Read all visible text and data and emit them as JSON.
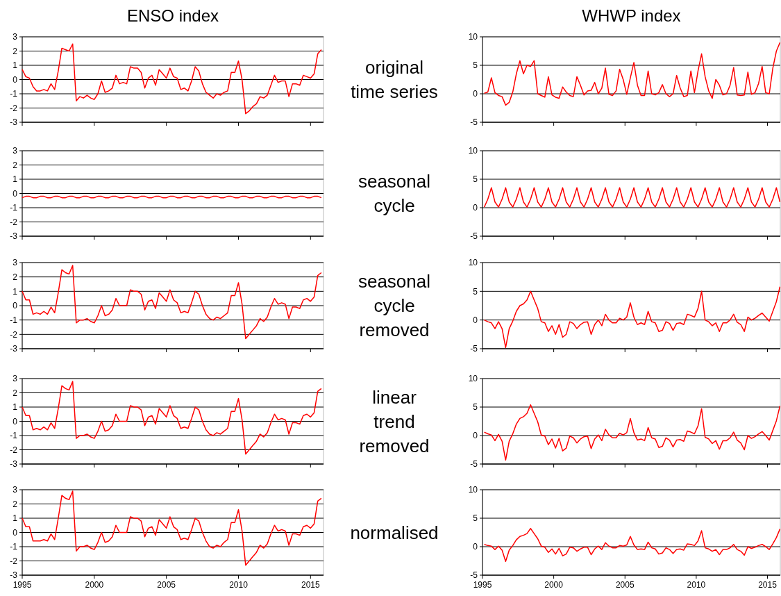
{
  "chart_data": [
    {
      "type": "line",
      "title": "ENSO index",
      "annotations": [
        "original time series"
      ],
      "color": "#ff0000",
      "xlim": [
        1995,
        2015.9
      ],
      "ylim": [
        -3,
        3
      ],
      "xticks": [
        1995,
        2000,
        2005,
        2010,
        2015
      ],
      "yticks": [
        -3,
        -2,
        -1,
        0,
        1,
        2,
        3
      ],
      "grid": "y",
      "tick_labels": "y",
      "x": [
        1995,
        1995.25,
        1995.5,
        1995.75,
        1996,
        1996.25,
        1996.5,
        1996.75,
        1997,
        1997.25,
        1997.5,
        1997.75,
        1998,
        1998.25,
        1998.5,
        1998.75,
        1999,
        1999.25,
        1999.5,
        1999.75,
        2000,
        2000.25,
        2000.5,
        2000.75,
        2001,
        2001.25,
        2001.5,
        2001.75,
        2002,
        2002.25,
        2002.5,
        2002.75,
        2003,
        2003.25,
        2003.5,
        2003.75,
        2004,
        2004.25,
        2004.5,
        2004.75,
        2005,
        2005.25,
        2005.5,
        2005.75,
        2006,
        2006.25,
        2006.5,
        2006.75,
        2007,
        2007.25,
        2007.5,
        2007.75,
        2008,
        2008.25,
        2008.5,
        2008.75,
        2009,
        2009.25,
        2009.5,
        2009.75,
        2010,
        2010.25,
        2010.5,
        2010.75,
        2011,
        2011.25,
        2011.5,
        2011.75,
        2012,
        2012.25,
        2012.5,
        2012.75,
        2013,
        2013.25,
        2013.5,
        2013.75,
        2014,
        2014.25,
        2014.5,
        2014.75,
        2015,
        2015.25,
        2015.5,
        2015.75
      ],
      "values": [
        0.7,
        0.2,
        0.1,
        -0.5,
        -0.8,
        -0.8,
        -0.7,
        -0.8,
        -0.3,
        -0.7,
        0.6,
        2.2,
        2.1,
        2.0,
        2.5,
        -1.5,
        -1.2,
        -1.3,
        -1.1,
        -1.3,
        -1.4,
        -1.0,
        -0.1,
        -0.9,
        -0.8,
        -0.6,
        0.3,
        -0.3,
        -0.2,
        -0.3,
        0.9,
        0.8,
        0.8,
        0.5,
        -0.6,
        0.1,
        0.3,
        -0.4,
        0.7,
        0.4,
        0.1,
        0.8,
        0.2,
        0.1,
        -0.7,
        -0.6,
        -0.8,
        -0.1,
        0.9,
        0.6,
        -0.3,
        -0.9,
        -1.1,
        -1.3,
        -1.0,
        -1.1,
        -0.9,
        -0.8,
        0.5,
        0.5,
        1.3,
        0.0,
        -2.4,
        -2.2,
        -1.9,
        -1.7,
        -1.2,
        -1.3,
        -1.1,
        -0.4,
        0.3,
        -0.2,
        -0.1,
        -0.1,
        -1.2,
        -0.3,
        -0.3,
        -0.4,
        0.3,
        0.2,
        0.1,
        0.4,
        1.8,
        2.1
      ]
    },
    {
      "type": "line",
      "title": "WHWP index",
      "color": "#ff0000",
      "xlim": [
        1995,
        2015.9
      ],
      "ylim": [
        -5,
        10
      ],
      "xticks": [
        1995,
        2000,
        2005,
        2010,
        2015
      ],
      "yticks": [
        -5,
        0,
        5,
        10
      ],
      "grid": "y",
      "tick_labels": "y",
      "x": [
        1995.125,
        1995.375,
        1995.625,
        1995.875,
        1996.125,
        1996.375,
        1996.625,
        1996.875,
        1997.125,
        1997.375,
        1997.625,
        1997.875,
        1998.125,
        1998.375,
        1998.625,
        1998.875,
        1999.125,
        1999.375,
        1999.625,
        1999.875,
        2000.125,
        2000.375,
        2000.625,
        2000.875,
        2001.125,
        2001.375,
        2001.625,
        2001.875,
        2002.125,
        2002.375,
        2002.625,
        2002.875,
        2003.125,
        2003.375,
        2003.625,
        2003.875,
        2004.125,
        2004.375,
        2004.625,
        2004.875,
        2005.125,
        2005.375,
        2005.625,
        2005.875,
        2006.125,
        2006.375,
        2006.625,
        2006.875,
        2007.125,
        2007.375,
        2007.625,
        2007.875,
        2008.125,
        2008.375,
        2008.625,
        2008.875,
        2009.125,
        2009.375,
        2009.625,
        2009.875,
        2010.125,
        2010.375,
        2010.625,
        2010.875,
        2011.125,
        2011.375,
        2011.625,
        2011.875,
        2012.125,
        2012.375,
        2012.625,
        2012.875,
        2013.125,
        2013.375,
        2013.625,
        2013.875,
        2014.125,
        2014.375,
        2014.625,
        2014.875,
        2015.125,
        2015.375,
        2015.625,
        2015.875
      ],
      "values": [
        0.1,
        0.3,
        2.8,
        0.2,
        -0.3,
        -0.5,
        -2.0,
        -1.5,
        0.3,
        3.5,
        5.8,
        3.5,
        5.0,
        4.8,
        5.8,
        0.0,
        -0.3,
        -0.6,
        3.0,
        -0.2,
        -0.6,
        -0.8,
        1.2,
        0.3,
        -0.3,
        -0.5,
        3.0,
        1.5,
        -0.2,
        0.5,
        0.6,
        2.0,
        0.0,
        1.0,
        4.5,
        -0.1,
        -0.3,
        0.5,
        4.3,
        2.5,
        -0.1,
        2.8,
        5.5,
        1.5,
        -0.3,
        -0.3,
        4.0,
        0.0,
        -0.2,
        0.2,
        1.6,
        0.0,
        -0.5,
        0.0,
        3.2,
        1.0,
        -0.5,
        -0.3,
        4.0,
        0.2,
        4.0,
        7.0,
        3.0,
        0.5,
        -0.8,
        2.5,
        1.5,
        -0.2,
        0.0,
        1.5,
        4.6,
        -0.2,
        -0.3,
        -0.2,
        3.8,
        -0.1,
        0.2,
        1.8,
        4.8,
        0.2,
        0.0,
        4.5,
        7.5,
        9.0
      ]
    },
    {
      "type": "line",
      "annotations": [
        "seasonal cycle"
      ],
      "color": "#ff0000",
      "xlim": [
        1995,
        2015.9
      ],
      "ylim": [
        -3,
        3
      ],
      "xticks": [
        1995,
        2000,
        2005,
        2010,
        2015
      ],
      "yticks": [
        -3,
        -2,
        -1,
        0,
        1,
        2,
        3
      ],
      "grid": "y",
      "tick_labels": "y",
      "x": [
        1995,
        1995.25,
        1995.5,
        1995.75,
        1996,
        1996.25,
        1996.5,
        1996.75,
        1997,
        1997.25,
        1997.5,
        1997.75,
        1998,
        1998.25,
        1998.5,
        1998.75,
        1999,
        1999.25,
        1999.5,
        1999.75,
        2000,
        2000.25,
        2000.5,
        2000.75,
        2001,
        2001.25,
        2001.5,
        2001.75,
        2002,
        2002.25,
        2002.5,
        2002.75,
        2003,
        2003.25,
        2003.5,
        2003.75,
        2004,
        2004.25,
        2004.5,
        2004.75,
        2005,
        2005.25,
        2005.5,
        2005.75,
        2006,
        2006.25,
        2006.5,
        2006.75,
        2007,
        2007.25,
        2007.5,
        2007.75,
        2008,
        2008.25,
        2008.5,
        2008.75,
        2009,
        2009.25,
        2009.5,
        2009.75,
        2010,
        2010.25,
        2010.5,
        2010.75,
        2011,
        2011.25,
        2011.5,
        2011.75,
        2012,
        2012.25,
        2012.5,
        2012.75,
        2013,
        2013.25,
        2013.5,
        2013.75,
        2014,
        2014.25,
        2014.5,
        2014.75,
        2015,
        2015.25,
        2015.5,
        2015.75
      ],
      "values": [
        -0.3,
        -0.2,
        -0.2,
        -0.3,
        -0.3,
        -0.2,
        -0.2,
        -0.3,
        -0.3,
        -0.2,
        -0.2,
        -0.3,
        -0.3,
        -0.2,
        -0.2,
        -0.3,
        -0.3,
        -0.2,
        -0.2,
        -0.3,
        -0.3,
        -0.2,
        -0.2,
        -0.3,
        -0.3,
        -0.2,
        -0.2,
        -0.3,
        -0.3,
        -0.2,
        -0.2,
        -0.3,
        -0.3,
        -0.2,
        -0.2,
        -0.3,
        -0.3,
        -0.2,
        -0.2,
        -0.3,
        -0.3,
        -0.2,
        -0.2,
        -0.3,
        -0.3,
        -0.2,
        -0.2,
        -0.3,
        -0.3,
        -0.2,
        -0.2,
        -0.3,
        -0.3,
        -0.2,
        -0.2,
        -0.3,
        -0.3,
        -0.2,
        -0.2,
        -0.3,
        -0.3,
        -0.2,
        -0.2,
        -0.3,
        -0.3,
        -0.2,
        -0.2,
        -0.3,
        -0.3,
        -0.2,
        -0.2,
        -0.3,
        -0.3,
        -0.2,
        -0.2,
        -0.3,
        -0.3,
        -0.2,
        -0.2,
        -0.3,
        -0.3,
        -0.2,
        -0.2,
        -0.3
      ]
    },
    {
      "type": "line",
      "color": "#ff0000",
      "xlim": [
        1995,
        2015.9
      ],
      "ylim": [
        -5,
        10
      ],
      "xticks": [
        1995,
        2000,
        2005,
        2010,
        2015
      ],
      "yticks": [
        -5,
        0,
        5,
        10
      ],
      "grid": "y",
      "tick_labels": "y",
      "x": [
        1995.125,
        1995.375,
        1995.625,
        1995.875,
        1996.125,
        1996.375,
        1996.625,
        1996.875,
        1997.125,
        1997.375,
        1997.625,
        1997.875,
        1998.125,
        1998.375,
        1998.625,
        1998.875,
        1999.125,
        1999.375,
        1999.625,
        1999.875,
        2000.125,
        2000.375,
        2000.625,
        2000.875,
        2001.125,
        2001.375,
        2001.625,
        2001.875,
        2002.125,
        2002.375,
        2002.625,
        2002.875,
        2003.125,
        2003.375,
        2003.625,
        2003.875,
        2004.125,
        2004.375,
        2004.625,
        2004.875,
        2005.125,
        2005.375,
        2005.625,
        2005.875,
        2006.125,
        2006.375,
        2006.625,
        2006.875,
        2007.125,
        2007.375,
        2007.625,
        2007.875,
        2008.125,
        2008.375,
        2008.625,
        2008.875,
        2009.125,
        2009.375,
        2009.625,
        2009.875,
        2010.125,
        2010.375,
        2010.625,
        2010.875,
        2011.125,
        2011.375,
        2011.625,
        2011.875,
        2012.125,
        2012.375,
        2012.625,
        2012.875,
        2013.125,
        2013.375,
        2013.625,
        2013.875,
        2014.125,
        2014.375,
        2014.625,
        2014.875,
        2015.125,
        2015.375,
        2015.625,
        2015.875
      ],
      "values": [
        0.1,
        1.5,
        3.5,
        1.0,
        0.1,
        1.5,
        3.5,
        1.0,
        0.1,
        1.5,
        3.5,
        1.0,
        0.1,
        1.5,
        3.5,
        1.0,
        0.1,
        1.5,
        3.5,
        1.0,
        0.1,
        1.5,
        3.5,
        1.0,
        0.1,
        1.5,
        3.5,
        1.0,
        0.1,
        1.5,
        3.5,
        1.0,
        0.1,
        1.5,
        3.5,
        1.0,
        0.1,
        1.5,
        3.5,
        1.0,
        0.1,
        1.5,
        3.5,
        1.0,
        0.1,
        1.5,
        3.5,
        1.0,
        0.1,
        1.5,
        3.5,
        1.0,
        0.1,
        1.5,
        3.5,
        1.0,
        0.1,
        1.5,
        3.5,
        1.0,
        0.1,
        1.5,
        3.5,
        1.0,
        0.1,
        1.5,
        3.5,
        1.0,
        0.1,
        1.5,
        3.5,
        1.0,
        0.1,
        1.5,
        3.5,
        1.0,
        0.1,
        1.5,
        3.5,
        1.0,
        0.1,
        1.5,
        3.5,
        1.0
      ]
    },
    {
      "type": "line",
      "annotations": [
        "seasonal cycle removed"
      ],
      "color": "#ff0000",
      "xlim": [
        1995,
        2015.9
      ],
      "ylim": [
        -3,
        3
      ],
      "xticks": [
        1995,
        2000,
        2005,
        2010,
        2015
      ],
      "yticks": [
        -3,
        -2,
        -1,
        0,
        1,
        2,
        3
      ],
      "grid": "y",
      "tick_labels": "y",
      "x": [
        1995,
        1995.25,
        1995.5,
        1995.75,
        1996,
        1996.25,
        1996.5,
        1996.75,
        1997,
        1997.25,
        1997.5,
        1997.75,
        1998,
        1998.25,
        1998.5,
        1998.75,
        1999,
        1999.25,
        1999.5,
        1999.75,
        2000,
        2000.25,
        2000.5,
        2000.75,
        2001,
        2001.25,
        2001.5,
        2001.75,
        2002,
        2002.25,
        2002.5,
        2002.75,
        2003,
        2003.25,
        2003.5,
        2003.75,
        2004,
        2004.25,
        2004.5,
        2004.75,
        2005,
        2005.25,
        2005.5,
        2005.75,
        2006,
        2006.25,
        2006.5,
        2006.75,
        2007,
        2007.25,
        2007.5,
        2007.75,
        2008,
        2008.25,
        2008.5,
        2008.75,
        2009,
        2009.25,
        2009.5,
        2009.75,
        2010,
        2010.25,
        2010.5,
        2010.75,
        2011,
        2011.25,
        2011.5,
        2011.75,
        2012,
        2012.25,
        2012.5,
        2012.75,
        2013,
        2013.25,
        2013.5,
        2013.75,
        2014,
        2014.25,
        2014.5,
        2014.75,
        2015,
        2015.25,
        2015.5,
        2015.75
      ],
      "values": [
        1.0,
        0.4,
        0.4,
        -0.6,
        -0.5,
        -0.6,
        -0.4,
        -0.6,
        -0.1,
        -0.5,
        0.9,
        2.5,
        2.3,
        2.2,
        2.8,
        -1.2,
        -1.0,
        -1.0,
        -0.9,
        -1.1,
        -1.2,
        -0.7,
        0.0,
        -0.7,
        -0.6,
        -0.3,
        0.5,
        0.0,
        0.0,
        0.0,
        1.1,
        1.0,
        1.0,
        0.8,
        -0.3,
        0.3,
        0.4,
        -0.2,
        0.9,
        0.6,
        0.3,
        1.1,
        0.4,
        0.2,
        -0.5,
        -0.4,
        -0.5,
        0.2,
        1.0,
        0.8,
        0.0,
        -0.6,
        -0.9,
        -1.0,
        -0.8,
        -0.9,
        -0.7,
        -0.5,
        0.7,
        0.7,
        1.6,
        0.1,
        -2.3,
        -2.0,
        -1.7,
        -1.4,
        -0.9,
        -1.1,
        -0.8,
        -0.1,
        0.5,
        0.1,
        0.2,
        0.1,
        -0.9,
        -0.1,
        -0.1,
        -0.2,
        0.4,
        0.5,
        0.3,
        0.6,
        2.1,
        2.3
      ]
    },
    {
      "type": "line",
      "color": "#ff0000",
      "xlim": [
        1995,
        2015.9
      ],
      "ylim": [
        -5,
        10
      ],
      "xticks": [
        1995,
        2000,
        2005,
        2010,
        2015
      ],
      "yticks": [
        -5,
        0,
        5,
        10
      ],
      "grid": "y",
      "tick_labels": "y",
      "x": [
        1995.125,
        1995.375,
        1995.625,
        1995.875,
        1996.125,
        1996.375,
        1996.625,
        1996.875,
        1997.125,
        1997.375,
        1997.625,
        1997.875,
        1998.125,
        1998.375,
        1998.625,
        1998.875,
        1999.125,
        1999.375,
        1999.625,
        1999.875,
        2000.125,
        2000.375,
        2000.625,
        2000.875,
        2001.125,
        2001.375,
        2001.625,
        2001.875,
        2002.125,
        2002.375,
        2002.625,
        2002.875,
        2003.125,
        2003.375,
        2003.625,
        2003.875,
        2004.125,
        2004.375,
        2004.625,
        2004.875,
        2005.125,
        2005.375,
        2005.625,
        2005.875,
        2006.125,
        2006.375,
        2006.625,
        2006.875,
        2007.125,
        2007.375,
        2007.625,
        2007.875,
        2008.125,
        2008.375,
        2008.625,
        2008.875,
        2009.125,
        2009.375,
        2009.625,
        2009.875,
        2010.125,
        2010.375,
        2010.625,
        2010.875,
        2011.125,
        2011.375,
        2011.625,
        2011.875,
        2012.125,
        2012.375,
        2012.625,
        2012.875,
        2013.125,
        2013.375,
        2013.625,
        2013.875,
        2014.125,
        2014.375,
        2014.625,
        2014.875,
        2015.125,
        2015.375,
        2015.625,
        2015.875
      ],
      "values": [
        0.0,
        -0.3,
        -0.5,
        -1.5,
        -0.3,
        -1.5,
        -4.8,
        -1.5,
        -0.2,
        1.5,
        2.5,
        2.8,
        3.5,
        5.0,
        3.5,
        2.0,
        -0.3,
        -0.5,
        -2.0,
        -1.0,
        -2.5,
        -0.8,
        -3.0,
        -2.5,
        -0.3,
        -0.6,
        -1.5,
        -0.8,
        -0.4,
        -0.3,
        -2.5,
        -0.8,
        0.0,
        -1.0,
        1.0,
        0.0,
        -0.5,
        -0.5,
        0.3,
        0.0,
        0.5,
        3.0,
        0.5,
        -0.8,
        -0.5,
        -0.8,
        1.5,
        -0.3,
        -0.5,
        -2.0,
        -1.8,
        -0.3,
        -0.6,
        -1.8,
        -0.6,
        -0.5,
        -0.8,
        1.0,
        0.8,
        0.5,
        2.0,
        5.0,
        0.0,
        -0.3,
        -1.0,
        -0.5,
        -2.0,
        -0.5,
        -0.5,
        0.0,
        1.0,
        -0.4,
        -0.8,
        -2.0,
        0.5,
        0.0,
        0.3,
        0.8,
        1.2,
        0.5,
        -0.2,
        1.5,
        3.2,
        5.8
      ]
    },
    {
      "type": "line",
      "annotations": [
        "linear trend removed"
      ],
      "color": "#ff0000",
      "xlim": [
        1995,
        2015.9
      ],
      "ylim": [
        -3,
        3
      ],
      "xticks": [
        1995,
        2000,
        2005,
        2010,
        2015
      ],
      "yticks": [
        -3,
        -2,
        -1,
        0,
        1,
        2,
        3
      ],
      "grid": "y",
      "tick_labels": "y",
      "x": [
        1995,
        1995.25,
        1995.5,
        1995.75,
        1996,
        1996.25,
        1996.5,
        1996.75,
        1997,
        1997.25,
        1997.5,
        1997.75,
        1998,
        1998.25,
        1998.5,
        1998.75,
        1999,
        1999.25,
        1999.5,
        1999.75,
        2000,
        2000.25,
        2000.5,
        2000.75,
        2001,
        2001.25,
        2001.5,
        2001.75,
        2002,
        2002.25,
        2002.5,
        2002.75,
        2003,
        2003.25,
        2003.5,
        2003.75,
        2004,
        2004.25,
        2004.5,
        2004.75,
        2005,
        2005.25,
        2005.5,
        2005.75,
        2006,
        2006.25,
        2006.5,
        2006.75,
        2007,
        2007.25,
        2007.5,
        2007.75,
        2008,
        2008.25,
        2008.5,
        2008.75,
        2009,
        2009.25,
        2009.5,
        2009.75,
        2010,
        2010.25,
        2010.5,
        2010.75,
        2011,
        2011.25,
        2011.5,
        2011.75,
        2012,
        2012.25,
        2012.5,
        2012.75,
        2013,
        2013.25,
        2013.5,
        2013.75,
        2014,
        2014.25,
        2014.5,
        2014.75,
        2015,
        2015.25,
        2015.5,
        2015.75
      ],
      "values": [
        1.0,
        0.4,
        0.4,
        -0.6,
        -0.5,
        -0.6,
        -0.4,
        -0.6,
        -0.1,
        -0.5,
        0.9,
        2.5,
        2.3,
        2.2,
        2.8,
        -1.2,
        -1.0,
        -1.0,
        -0.9,
        -1.1,
        -1.2,
        -0.7,
        0.0,
        -0.7,
        -0.6,
        -0.3,
        0.5,
        0.0,
        0.0,
        0.0,
        1.1,
        1.0,
        1.0,
        0.8,
        -0.3,
        0.3,
        0.4,
        -0.2,
        0.9,
        0.6,
        0.3,
        1.1,
        0.4,
        0.2,
        -0.5,
        -0.4,
        -0.5,
        0.2,
        1.0,
        0.8,
        0.0,
        -0.6,
        -0.9,
        -1.0,
        -0.8,
        -0.9,
        -0.7,
        -0.5,
        0.7,
        0.7,
        1.6,
        0.1,
        -2.3,
        -2.0,
        -1.7,
        -1.4,
        -0.9,
        -1.1,
        -0.8,
        -0.1,
        0.5,
        0.1,
        0.2,
        0.1,
        -0.9,
        -0.1,
        -0.1,
        -0.2,
        0.4,
        0.5,
        0.3,
        0.6,
        2.1,
        2.3
      ]
    },
    {
      "type": "line",
      "color": "#ff0000",
      "xlim": [
        1995,
        2015.9
      ],
      "ylim": [
        -5,
        10
      ],
      "xticks": [
        1995,
        2000,
        2005,
        2010,
        2015
      ],
      "yticks": [
        -5,
        0,
        5,
        10
      ],
      "grid": "y",
      "tick_labels": "y",
      "x": [
        1995.125,
        1995.375,
        1995.625,
        1995.875,
        1996.125,
        1996.375,
        1996.625,
        1996.875,
        1997.125,
        1997.375,
        1997.625,
        1997.875,
        1998.125,
        1998.375,
        1998.625,
        1998.875,
        1999.125,
        1999.375,
        1999.625,
        1999.875,
        2000.125,
        2000.375,
        2000.625,
        2000.875,
        2001.125,
        2001.375,
        2001.625,
        2001.875,
        2002.125,
        2002.375,
        2002.625,
        2002.875,
        2003.125,
        2003.375,
        2003.625,
        2003.875,
        2004.125,
        2004.375,
        2004.625,
        2004.875,
        2005.125,
        2005.375,
        2005.625,
        2005.875,
        2006.125,
        2006.375,
        2006.625,
        2006.875,
        2007.125,
        2007.375,
        2007.625,
        2007.875,
        2008.125,
        2008.375,
        2008.625,
        2008.875,
        2009.125,
        2009.375,
        2009.625,
        2009.875,
        2010.125,
        2010.375,
        2010.625,
        2010.875,
        2011.125,
        2011.375,
        2011.625,
        2011.875,
        2012.125,
        2012.375,
        2012.625,
        2012.875,
        2013.125,
        2013.375,
        2013.625,
        2013.875,
        2014.125,
        2014.375,
        2014.625,
        2014.875,
        2015.125,
        2015.375,
        2015.625,
        2015.875
      ],
      "values": [
        0.6,
        0.3,
        0.1,
        -0.9,
        0.2,
        -1.0,
        -4.3,
        -1.0,
        0.3,
        2.0,
        3.0,
        3.3,
        3.9,
        5.4,
        3.9,
        2.4,
        0.1,
        -0.1,
        -1.6,
        -0.6,
        -2.2,
        -0.5,
        -2.7,
        -2.2,
        -0.1,
        -0.4,
        -1.3,
        -0.6,
        -0.2,
        -0.1,
        -2.3,
        -0.6,
        0.1,
        -0.9,
        1.1,
        0.1,
        -0.4,
        -0.4,
        0.4,
        0.1,
        0.5,
        3.0,
        0.5,
        -0.8,
        -0.6,
        -0.9,
        1.4,
        -0.4,
        -0.6,
        -2.1,
        -1.9,
        -0.4,
        -0.8,
        -2.0,
        -0.8,
        -0.7,
        -1.0,
        0.8,
        0.6,
        0.3,
        1.7,
        4.7,
        -0.3,
        -0.6,
        -1.4,
        -0.9,
        -2.4,
        -0.9,
        -0.9,
        -0.4,
        0.6,
        -0.8,
        -1.3,
        -2.5,
        0.0,
        -0.5,
        -0.2,
        0.3,
        0.7,
        0.0,
        -0.8,
        0.9,
        2.6,
        5.2
      ]
    },
    {
      "type": "line",
      "annotations": [
        "normalised"
      ],
      "color": "#ff0000",
      "xlim": [
        1995,
        2015.9
      ],
      "ylim": [
        -3,
        3
      ],
      "xticks": [
        1995,
        2000,
        2005,
        2010,
        2015
      ],
      "yticks": [
        -3,
        -2,
        -1,
        0,
        1,
        2,
        3
      ],
      "grid": "y",
      "x": [
        1995,
        1995.25,
        1995.5,
        1995.75,
        1996,
        1996.25,
        1996.5,
        1996.75,
        1997,
        1997.25,
        1997.5,
        1997.75,
        1998,
        1998.25,
        1998.5,
        1998.75,
        1999,
        1999.25,
        1999.5,
        1999.75,
        2000,
        2000.25,
        2000.5,
        2000.75,
        2001,
        2001.25,
        2001.5,
        2001.75,
        2002,
        2002.25,
        2002.5,
        2002.75,
        2003,
        2003.25,
        2003.5,
        2003.75,
        2004,
        2004.25,
        2004.5,
        2004.75,
        2005,
        2005.25,
        2005.5,
        2005.75,
        2006,
        2006.25,
        2006.5,
        2006.75,
        2007,
        2007.25,
        2007.5,
        2007.75,
        2008,
        2008.25,
        2008.5,
        2008.75,
        2009,
        2009.25,
        2009.5,
        2009.75,
        2010,
        2010.25,
        2010.5,
        2010.75,
        2011,
        2011.25,
        2011.5,
        2011.75,
        2012,
        2012.25,
        2012.5,
        2012.75,
        2013,
        2013.25,
        2013.5,
        2013.75,
        2014,
        2014.25,
        2014.5,
        2014.75,
        2015,
        2015.25,
        2015.5,
        2015.75
      ],
      "values": [
        1.0,
        0.4,
        0.4,
        -0.6,
        -0.6,
        -0.6,
        -0.5,
        -0.6,
        -0.1,
        -0.5,
        1.0,
        2.6,
        2.4,
        2.3,
        2.9,
        -1.3,
        -1.0,
        -1.0,
        -0.9,
        -1.1,
        -1.2,
        -0.7,
        0.0,
        -0.7,
        -0.6,
        -0.3,
        0.5,
        0.0,
        0.0,
        0.0,
        1.1,
        1.0,
        1.0,
        0.8,
        -0.3,
        0.3,
        0.4,
        -0.2,
        0.9,
        0.6,
        0.3,
        1.1,
        0.4,
        0.2,
        -0.5,
        -0.4,
        -0.5,
        0.2,
        1.0,
        0.8,
        0.0,
        -0.6,
        -1.0,
        -1.1,
        -0.9,
        -1.0,
        -0.7,
        -0.5,
        0.7,
        0.7,
        1.6,
        0.1,
        -2.3,
        -2.0,
        -1.7,
        -1.4,
        -0.9,
        -1.1,
        -0.8,
        -0.1,
        0.5,
        0.1,
        0.2,
        0.1,
        -0.9,
        -0.1,
        -0.1,
        -0.2,
        0.4,
        0.5,
        0.3,
        0.6,
        2.2,
        2.4
      ]
    },
    {
      "type": "line",
      "color": "#ff0000",
      "xlim": [
        1995,
        2015.9
      ],
      "ylim": [
        -5,
        10
      ],
      "xticks": [
        1995,
        2000,
        2005,
        2010,
        2015
      ],
      "yticks": [
        -5,
        0,
        5,
        10
      ],
      "grid": "y",
      "x": [
        1995.125,
        1995.375,
        1995.625,
        1995.875,
        1996.125,
        1996.375,
        1996.625,
        1996.875,
        1997.125,
        1997.375,
        1997.625,
        1997.875,
        1998.125,
        1998.375,
        1998.625,
        1998.875,
        1999.125,
        1999.375,
        1999.625,
        1999.875,
        2000.125,
        2000.375,
        2000.625,
        2000.875,
        2001.125,
        2001.375,
        2001.625,
        2001.875,
        2002.125,
        2002.375,
        2002.625,
        2002.875,
        2003.125,
        2003.375,
        2003.625,
        2003.875,
        2004.125,
        2004.375,
        2004.625,
        2004.875,
        2005.125,
        2005.375,
        2005.625,
        2005.875,
        2006.125,
        2006.375,
        2006.625,
        2006.875,
        2007.125,
        2007.375,
        2007.625,
        2007.875,
        2008.125,
        2008.375,
        2008.625,
        2008.875,
        2009.125,
        2009.375,
        2009.625,
        2009.875,
        2010.125,
        2010.375,
        2010.625,
        2010.875,
        2011.125,
        2011.375,
        2011.625,
        2011.875,
        2012.125,
        2012.375,
        2012.625,
        2012.875,
        2013.125,
        2013.375,
        2013.625,
        2013.875,
        2014.125,
        2014.375,
        2014.625,
        2014.875,
        2015.125,
        2015.375,
        2015.625,
        2015.875
      ],
      "values": [
        0.4,
        0.2,
        0.1,
        -0.5,
        0.1,
        -0.6,
        -2.6,
        -0.6,
        0.2,
        1.2,
        1.8,
        2.0,
        2.3,
        3.2,
        2.3,
        1.4,
        0.1,
        -0.1,
        -1.0,
        -0.4,
        -1.3,
        -0.3,
        -1.6,
        -1.3,
        -0.1,
        -0.2,
        -0.8,
        -0.4,
        -0.1,
        -0.1,
        -1.4,
        -0.4,
        0.1,
        -0.5,
        0.7,
        0.1,
        -0.2,
        -0.2,
        0.2,
        0.1,
        0.3,
        1.8,
        0.3,
        -0.5,
        -0.4,
        -0.5,
        0.8,
        -0.2,
        -0.4,
        -1.3,
        -1.1,
        -0.2,
        -0.5,
        -1.2,
        -0.5,
        -0.4,
        -0.6,
        0.5,
        0.4,
        0.2,
        1.0,
        2.8,
        -0.2,
        -0.4,
        -0.8,
        -0.5,
        -1.4,
        -0.5,
        -0.5,
        -0.2,
        0.4,
        -0.5,
        -0.8,
        -1.5,
        0.0,
        -0.3,
        -0.1,
        0.2,
        0.4,
        0.0,
        -0.5,
        0.5,
        1.6,
        3.1
      ]
    }
  ]
}
